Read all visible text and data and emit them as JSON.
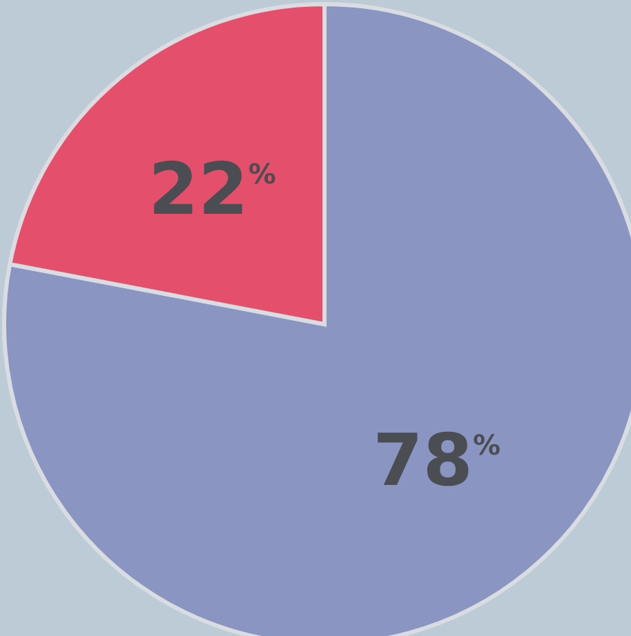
{
  "chart_data": {
    "type": "pie",
    "categories": [
      null,
      null
    ],
    "values": [
      78,
      22
    ],
    "colors": [
      "#8a95c2",
      "#e4506c"
    ],
    "value_labels": [
      "78$^{%}$",
      "22$^{%}$"
    ]
  }
}
